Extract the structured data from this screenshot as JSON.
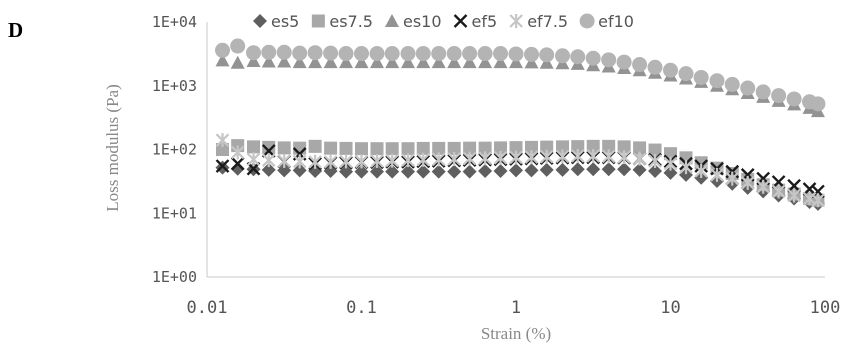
{
  "panel_label": "D",
  "chart_data": {
    "type": "scatter",
    "title": "",
    "xlabel": "Strain (%)",
    "ylabel": "Loss modulus (Pa)",
    "x_scale": "log",
    "y_scale": "log",
    "xlim": [
      0.01,
      100
    ],
    "ylim": [
      1,
      10000
    ],
    "x_tick_labels": [
      "0.01",
      "0.1",
      "1",
      "10",
      "100"
    ],
    "y_tick_labels": [
      "1E+00",
      "1E+01",
      "1E+02",
      "1E+03",
      "1E+04"
    ],
    "grid": false,
    "legend_position": "top",
    "series": [
      {
        "name": "es5",
        "marker": "diamond",
        "color": "#5f5f5f",
        "x": [
          0.0126,
          0.0158,
          0.02,
          0.0251,
          0.0316,
          0.0398,
          0.0501,
          0.0631,
          0.0794,
          0.1,
          0.126,
          0.158,
          0.2,
          0.251,
          0.316,
          0.398,
          0.501,
          0.631,
          0.794,
          1,
          1.26,
          1.58,
          2,
          2.51,
          3.16,
          3.98,
          5.01,
          6.31,
          7.94,
          10,
          12.6,
          15.8,
          20,
          25.1,
          31.6,
          39.8,
          50.1,
          63.1,
          79.4,
          90
        ],
        "y": [
          52,
          50,
          49,
          48,
          47,
          47,
          46,
          46,
          45,
          45,
          45,
          45,
          45,
          45,
          45,
          45,
          45,
          46,
          46,
          47,
          47,
          48,
          48,
          49,
          49,
          49,
          49,
          48,
          46,
          43,
          40,
          36,
          32,
          29,
          25,
          22,
          19,
          17,
          15,
          14
        ]
      },
      {
        "name": "es7.5",
        "marker": "square",
        "color": "#a8a8a8",
        "x": [
          0.0126,
          0.0158,
          0.02,
          0.0251,
          0.0316,
          0.0398,
          0.0501,
          0.0631,
          0.0794,
          0.1,
          0.126,
          0.158,
          0.2,
          0.251,
          0.316,
          0.398,
          0.501,
          0.631,
          0.794,
          1,
          1.26,
          1.58,
          2,
          2.51,
          3.16,
          3.98,
          5.01,
          6.31,
          7.94,
          10,
          12.6,
          15.8,
          20,
          25.1,
          31.6,
          39.8,
          50.1,
          63.1,
          79.4,
          90
        ],
        "y": [
          100,
          115,
          110,
          108,
          106,
          105,
          112,
          105,
          104,
          103,
          103,
          103,
          103,
          104,
          104,
          104,
          105,
          105,
          106,
          107,
          108,
          109,
          110,
          111,
          112,
          112,
          110,
          106,
          98,
          86,
          74,
          62,
          51,
          42,
          34,
          28,
          23,
          20,
          17,
          16
        ]
      },
      {
        "name": "es10",
        "marker": "triangle",
        "color": "#939393",
        "x": [
          0.0126,
          0.0158,
          0.02,
          0.0251,
          0.0316,
          0.0398,
          0.0501,
          0.0631,
          0.0794,
          0.1,
          0.126,
          0.158,
          0.2,
          0.251,
          0.316,
          0.398,
          0.501,
          0.631,
          0.794,
          1,
          1.26,
          1.58,
          2,
          2.51,
          3.16,
          3.98,
          5.01,
          6.31,
          7.94,
          10,
          12.6,
          15.8,
          20,
          25.1,
          31.6,
          39.8,
          50.1,
          63.1,
          79.4,
          90
        ],
        "y": [
          2500,
          2300,
          2450,
          2400,
          2400,
          2350,
          2350,
          2350,
          2350,
          2350,
          2350,
          2350,
          2350,
          2350,
          2350,
          2350,
          2350,
          2350,
          2350,
          2350,
          2330,
          2300,
          2250,
          2200,
          2100,
          2000,
          1900,
          1750,
          1600,
          1450,
          1300,
          1150,
          1000,
          880,
          770,
          670,
          580,
          510,
          450,
          400
        ]
      },
      {
        "name": "ef5",
        "marker": "x",
        "color": "#1a1a1a",
        "x": [
          0.0126,
          0.0158,
          0.02,
          0.0251,
          0.0316,
          0.0398,
          0.0501,
          0.0631,
          0.0794,
          0.1,
          0.126,
          0.158,
          0.2,
          0.251,
          0.316,
          0.398,
          0.501,
          0.631,
          0.794,
          1,
          1.26,
          1.58,
          2,
          2.51,
          3.16,
          3.98,
          5.01,
          6.31,
          7.94,
          10,
          12.6,
          15.8,
          20,
          25.1,
          31.6,
          39.8,
          50.1,
          63.1,
          79.4,
          90
        ],
        "y": [
          55,
          60,
          50,
          95,
          65,
          85,
          60,
          62,
          62,
          63,
          63,
          64,
          64,
          65,
          66,
          67,
          68,
          69,
          70,
          71,
          72,
          73,
          74,
          75,
          75,
          75,
          74,
          72,
          69,
          65,
          60,
          55,
          50,
          45,
          40,
          35,
          31,
          27,
          24,
          22
        ]
      },
      {
        "name": "ef7.5",
        "marker": "asterisk",
        "color": "#c6c6c6",
        "x": [
          0.0126,
          0.0158,
          0.02,
          0.0251,
          0.0316,
          0.0398,
          0.0501,
          0.0631,
          0.0794,
          0.1,
          0.126,
          0.158,
          0.2,
          0.251,
          0.316,
          0.398,
          0.501,
          0.631,
          0.794,
          1,
          1.26,
          1.58,
          2,
          2.51,
          3.16,
          3.98,
          5.01,
          6.31,
          7.94,
          10,
          12.6,
          15.8,
          20,
          25.1,
          31.6,
          39.8,
          50.1,
          63.1,
          79.4,
          90
        ],
        "y": [
          140,
          90,
          70,
          68,
          66,
          65,
          64,
          64,
          65,
          65,
          66,
          67,
          68,
          69,
          70,
          71,
          72,
          73,
          74,
          75,
          76,
          77,
          78,
          79,
          79,
          78,
          76,
          72,
          66,
          60,
          53,
          46,
          40,
          35,
          30,
          26,
          22,
          19,
          17,
          16
        ]
      },
      {
        "name": "ef10",
        "marker": "circle",
        "color": "#b4b4b4",
        "x": [
          0.0126,
          0.0158,
          0.02,
          0.0251,
          0.0316,
          0.0398,
          0.0501,
          0.0631,
          0.0794,
          0.1,
          0.126,
          0.158,
          0.2,
          0.251,
          0.316,
          0.398,
          0.501,
          0.631,
          0.794,
          1,
          1.26,
          1.58,
          2,
          2.51,
          3.16,
          3.98,
          5.01,
          6.31,
          7.94,
          10,
          12.6,
          15.8,
          20,
          25.1,
          31.6,
          39.8,
          50.1,
          63.1,
          79.4,
          90
        ],
        "y": [
          3600,
          4200,
          3300,
          3350,
          3350,
          3250,
          3300,
          3250,
          3200,
          3200,
          3200,
          3200,
          3200,
          3200,
          3200,
          3200,
          3200,
          3200,
          3200,
          3150,
          3100,
          3050,
          2950,
          2850,
          2700,
          2550,
          2350,
          2150,
          1950,
          1750,
          1550,
          1350,
          1200,
          1050,
          920,
          800,
          700,
          620,
          560,
          520
        ]
      }
    ]
  }
}
